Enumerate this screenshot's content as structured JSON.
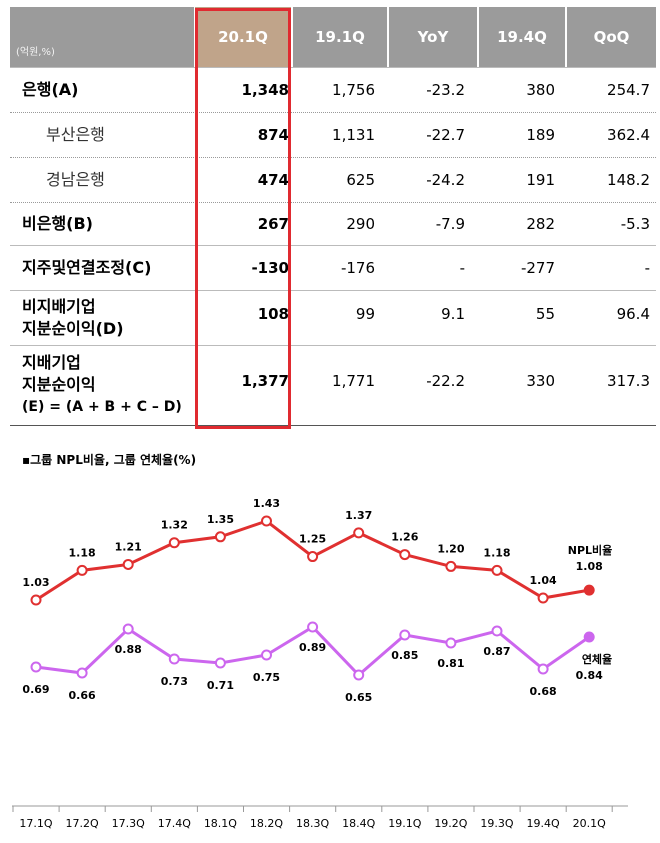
{
  "table": {
    "unit": "(억원,%)",
    "columns": [
      "20.1Q",
      "19.1Q",
      "YoY",
      "19.4Q",
      "QoQ"
    ],
    "rows": [
      {
        "label": "은행(A)",
        "bold": true,
        "values": [
          "1,348",
          "1,756",
          "-23.2",
          "380",
          "254.7"
        ]
      },
      {
        "label": "부산은행",
        "bold": false,
        "values": [
          "874",
          "1,131",
          "-22.7",
          "189",
          "362.4"
        ]
      },
      {
        "label": "경남은행",
        "bold": false,
        "values": [
          "474",
          "625",
          "-24.2",
          "191",
          "148.2"
        ]
      },
      {
        "label": "비은행(B)",
        "bold": true,
        "values": [
          "267",
          "290",
          "-7.9",
          "282",
          "-5.3"
        ]
      },
      {
        "label": "지주및연결조정(C)",
        "bold": true,
        "values": [
          "-130",
          "-176",
          "-",
          "-277",
          "-"
        ]
      },
      {
        "label_lines": [
          "비지배기업",
          "지분순이익(D)"
        ],
        "bold": true,
        "values": [
          "108",
          "99",
          "9.1",
          "55",
          "96.4"
        ]
      },
      {
        "label_lines": [
          "지배기업",
          "지분순이익",
          "(E) = (A + B + C – D)"
        ],
        "bold": true,
        "values": [
          "1,377",
          "1,771",
          "-22.2",
          "330",
          "317.3"
        ]
      }
    ]
  },
  "chart_data": {
    "type": "line",
    "title": "▪그룹 NPL비율, 그룹 연체율(%)",
    "categories": [
      "17.1Q",
      "17.2Q",
      "17.3Q",
      "17.4Q",
      "18.1Q",
      "18.2Q",
      "18.3Q",
      "18.4Q",
      "19.1Q",
      "19.2Q",
      "19.3Q",
      "19.4Q",
      "20.1Q"
    ],
    "series": [
      {
        "name": "NPL비율",
        "color": "#e03030",
        "values": [
          1.03,
          1.18,
          1.21,
          1.32,
          1.35,
          1.43,
          1.25,
          1.37,
          1.26,
          1.2,
          1.18,
          1.04,
          1.08
        ]
      },
      {
        "name": "연체율",
        "color": "#cc66ee",
        "values": [
          0.69,
          0.66,
          0.88,
          0.73,
          0.71,
          0.75,
          0.89,
          0.65,
          0.85,
          0.81,
          0.87,
          0.68,
          0.84
        ]
      }
    ]
  }
}
